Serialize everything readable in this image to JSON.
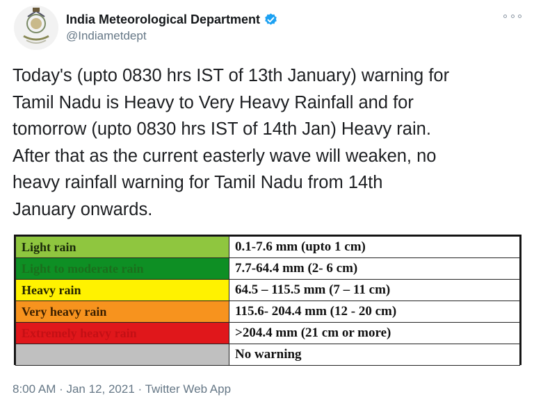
{
  "header": {
    "display_name": "India Meteorological Department",
    "handle": "@Indiametdept"
  },
  "tweet": {
    "text": "Today's (upto 0830 hrs IST of 13th January) warning for\nTamil Nadu is Heavy to Very Heavy Rainfall and for\ntomorrow (upto 0830 hrs IST of 14th Jan) Heavy rain.\nAfter that as the current easterly wave will weaken, no\nheavy rainfall warning for Tamil Nadu from 14th\nJanuary onwards."
  },
  "legend_table": {
    "rows": [
      {
        "category": "Light rain",
        "range": "0.1-7.6 mm (upto 1 cm)",
        "bg": "#8fc63f",
        "fg": "#1a2a0a"
      },
      {
        "category": "Light to moderate rain",
        "range": "7.7-64.4 mm (2- 6 cm)",
        "bg": "#0e8f24",
        "fg": "#1b6e1c"
      },
      {
        "category": "Heavy rain",
        "range": "64.5 – 115.5 mm (7 – 11 cm)",
        "bg": "#fff200",
        "fg": "#222200"
      },
      {
        "category": "Very heavy rain",
        "range": "115.6- 204.4 mm (12 - 20 cm)",
        "bg": "#f7931e",
        "fg": "#3a1f00"
      },
      {
        "category": "Extremely heavy rain",
        "range": ">204.4 mm (21 cm or more)",
        "bg": "#e0171b",
        "fg": "#c41015"
      },
      {
        "category": "",
        "range": "No warning",
        "bg": "#c0c0c0",
        "fg": "#111111"
      }
    ]
  },
  "footer": {
    "timestamp": "8:00 AM · Jan 12, 2021 · Twitter Web App"
  },
  "colors": {
    "verified_blue": "#1da1f2",
    "meta_gray": "#657786"
  }
}
